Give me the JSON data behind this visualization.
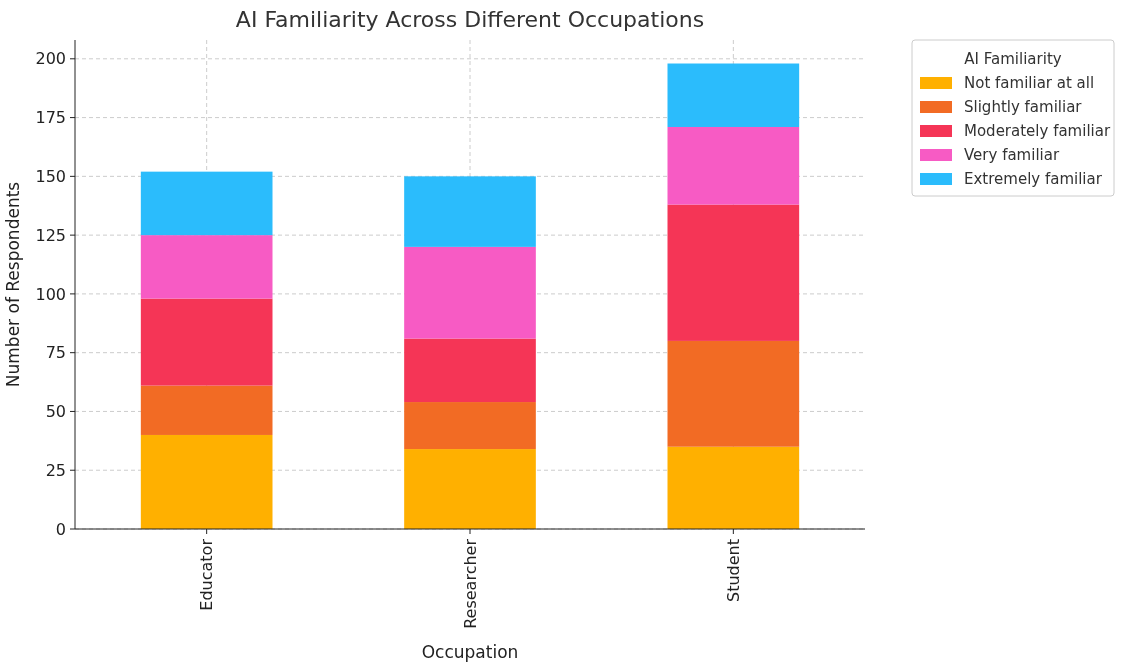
{
  "chart_data": {
    "type": "bar",
    "title": "AI Familiarity Across Different Occupations",
    "xlabel": "Occupation",
    "ylabel": "Number of Respondents",
    "legend_title": "AI Familiarity",
    "categories": [
      "Educator",
      "Researcher",
      "Student"
    ],
    "stacked": true,
    "series": [
      {
        "name": "Not familiar at all",
        "color": "#ffb000",
        "values": [
          40,
          34,
          35
        ]
      },
      {
        "name": "Slightly familiar",
        "color": "#f26b24",
        "values": [
          21,
          20,
          45
        ]
      },
      {
        "name": "Moderately familiar",
        "color": "#f53556",
        "values": [
          37,
          27,
          58
        ]
      },
      {
        "name": "Very familiar",
        "color": "#f75bc4",
        "values": [
          27,
          39,
          33
        ]
      },
      {
        "name": "Extremely familiar",
        "color": "#2bbcfc",
        "values": [
          27,
          30,
          27
        ]
      }
    ],
    "ylim": [
      0,
      208
    ],
    "yticks": [
      0,
      25,
      50,
      75,
      100,
      125,
      150,
      175,
      200
    ],
    "grid": true,
    "legend": "top right"
  }
}
